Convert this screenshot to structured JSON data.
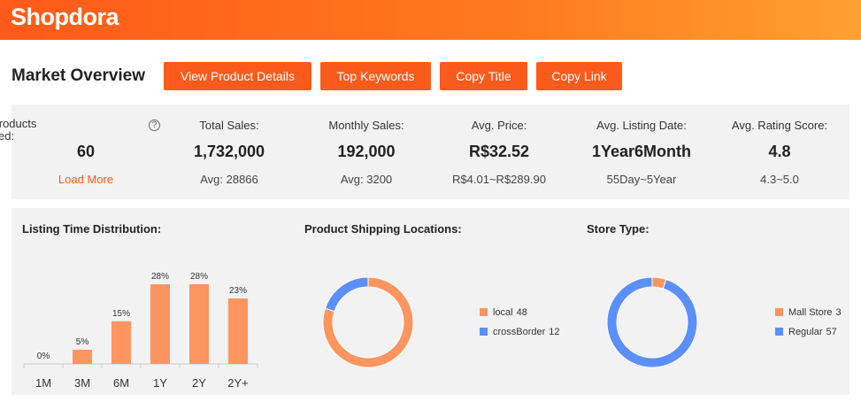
{
  "header": {
    "logo": "Shopdora"
  },
  "toolbar": {
    "title": "Market Overview",
    "buttons": [
      "View Product Details",
      "Top Keywords",
      "Copy Title",
      "Copy Link"
    ]
  },
  "stats": [
    {
      "label": "Total Products Analyzed:",
      "icon": "?",
      "value": "60",
      "sub": "Load More"
    },
    {
      "label": "Total Sales:",
      "value": "1,732,000",
      "sub": "Avg: 28866"
    },
    {
      "label": "Monthly Sales:",
      "value": "192,000",
      "sub": "Avg: 3200"
    },
    {
      "label": "Avg. Price:",
      "value": "R$32.52",
      "sub": "R$4.01~R$289.90"
    },
    {
      "label": "Avg. Listing Date:",
      "value": "1Year6Month",
      "sub": "55Day~5Year"
    },
    {
      "label": "Avg. Rating Score:",
      "value": "4.8",
      "sub": "4.3~5.0"
    }
  ],
  "chart_data": [
    {
      "type": "bar",
      "title": "Listing Time Distribution:",
      "categories": [
        "1M",
        "3M",
        "6M",
        "1Y",
        "2Y",
        "2Y+"
      ],
      "values": [
        0,
        5,
        15,
        28,
        28,
        23
      ],
      "value_labels": [
        "0%",
        "5%",
        "15%",
        "28%",
        "28%",
        "23%"
      ],
      "color": "#fc9560"
    },
    {
      "type": "pie",
      "title": "Product Shipping Locations:",
      "categories": [
        "local",
        "crossBorder"
      ],
      "values": [
        48,
        12
      ],
      "colors": [
        "#fc9560",
        "#5b8ff9"
      ]
    },
    {
      "type": "pie",
      "title": "Store Type:",
      "categories": [
        "Mall Store",
        "Regular"
      ],
      "values": [
        3,
        57
      ],
      "colors": [
        "#fc9560",
        "#5b8ff9"
      ]
    }
  ]
}
